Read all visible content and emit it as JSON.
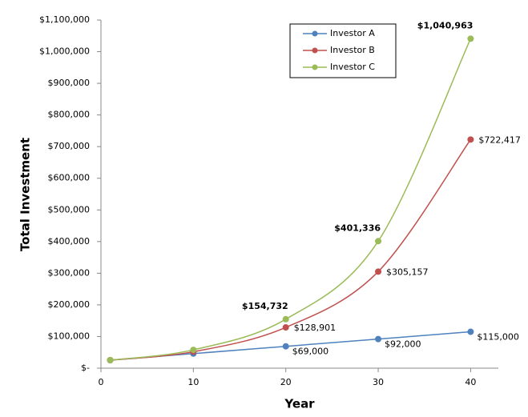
{
  "chart_data": {
    "type": "line",
    "x_label": "Year",
    "y_label": "Total Investment",
    "x": [
      1,
      10,
      20,
      30,
      40
    ],
    "series": [
      {
        "name": "Investor A",
        "color": "#4f81bd",
        "values": [
          25300,
          46000,
          69000,
          92000,
          115000
        ],
        "value_labels": [
          null,
          null,
          "$69,000",
          "$92,000",
          "$115,000"
        ]
      },
      {
        "name": "Investor B",
        "color": "#c0504d",
        "values": [
          25300,
          52000,
          128901,
          305157,
          722417
        ],
        "value_labels": [
          null,
          null,
          "$128,901",
          "$305,157",
          "$722,417"
        ]
      },
      {
        "name": "Investor C",
        "color": "#9bbb59",
        "values": [
          25300,
          58000,
          154732,
          401336,
          1040963
        ],
        "value_labels": [
          null,
          null,
          "$154,732",
          "$401,336",
          "$1,040,963"
        ]
      }
    ],
    "xlim": [
      0,
      43
    ],
    "xticks": [
      0,
      10,
      20,
      30,
      40
    ],
    "ylim": [
      0,
      1100000
    ],
    "yticks": [
      {
        "value": 0,
        "label": "$-"
      },
      {
        "value": 100000,
        "label": "$100,000"
      },
      {
        "value": 200000,
        "label": "$200,000"
      },
      {
        "value": 300000,
        "label": "$300,000"
      },
      {
        "value": 400000,
        "label": "$400,000"
      },
      {
        "value": 500000,
        "label": "$500,000"
      },
      {
        "value": 600000,
        "label": "$600,000"
      },
      {
        "value": 700000,
        "label": "$700,000"
      },
      {
        "value": 800000,
        "label": "$800,000"
      },
      {
        "value": 900000,
        "label": "$900,000"
      },
      {
        "value": 1000000,
        "label": "$1,000,000"
      },
      {
        "value": 1100000,
        "label": "$1,100,000"
      }
    ],
    "grid": false,
    "legend": "top"
  }
}
